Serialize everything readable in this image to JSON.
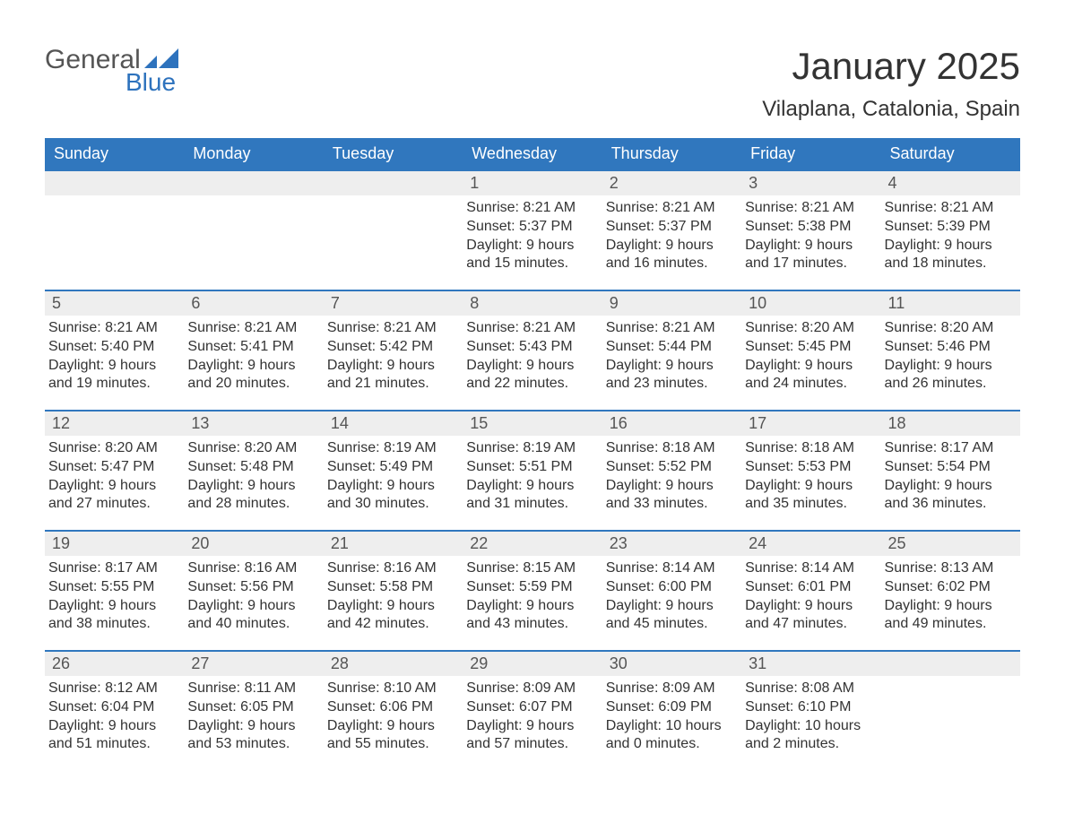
{
  "logo": {
    "text1": "General",
    "text2": "Blue",
    "accent_color": "#2d72bd"
  },
  "title": "January 2025",
  "location": "Vilaplana, Catalonia, Spain",
  "colors": {
    "header_bg": "#3077be",
    "header_fg": "#ffffff",
    "daynum_bg": "#eeeeee",
    "text": "#333333",
    "page_bg": "#ffffff"
  },
  "font": {
    "family": "Arial",
    "title_size_pt": 32,
    "location_size_pt": 18,
    "body_size_pt": 12
  },
  "daynames": [
    "Sunday",
    "Monday",
    "Tuesday",
    "Wednesday",
    "Thursday",
    "Friday",
    "Saturday"
  ],
  "weeks": [
    [
      {
        "day": "",
        "sunrise": "",
        "sunset": "",
        "daylight1": "",
        "daylight2": ""
      },
      {
        "day": "",
        "sunrise": "",
        "sunset": "",
        "daylight1": "",
        "daylight2": ""
      },
      {
        "day": "",
        "sunrise": "",
        "sunset": "",
        "daylight1": "",
        "daylight2": ""
      },
      {
        "day": "1",
        "sunrise": "Sunrise: 8:21 AM",
        "sunset": "Sunset: 5:37 PM",
        "daylight1": "Daylight: 9 hours",
        "daylight2": "and 15 minutes."
      },
      {
        "day": "2",
        "sunrise": "Sunrise: 8:21 AM",
        "sunset": "Sunset: 5:37 PM",
        "daylight1": "Daylight: 9 hours",
        "daylight2": "and 16 minutes."
      },
      {
        "day": "3",
        "sunrise": "Sunrise: 8:21 AM",
        "sunset": "Sunset: 5:38 PM",
        "daylight1": "Daylight: 9 hours",
        "daylight2": "and 17 minutes."
      },
      {
        "day": "4",
        "sunrise": "Sunrise: 8:21 AM",
        "sunset": "Sunset: 5:39 PM",
        "daylight1": "Daylight: 9 hours",
        "daylight2": "and 18 minutes."
      }
    ],
    [
      {
        "day": "5",
        "sunrise": "Sunrise: 8:21 AM",
        "sunset": "Sunset: 5:40 PM",
        "daylight1": "Daylight: 9 hours",
        "daylight2": "and 19 minutes."
      },
      {
        "day": "6",
        "sunrise": "Sunrise: 8:21 AM",
        "sunset": "Sunset: 5:41 PM",
        "daylight1": "Daylight: 9 hours",
        "daylight2": "and 20 minutes."
      },
      {
        "day": "7",
        "sunrise": "Sunrise: 8:21 AM",
        "sunset": "Sunset: 5:42 PM",
        "daylight1": "Daylight: 9 hours",
        "daylight2": "and 21 minutes."
      },
      {
        "day": "8",
        "sunrise": "Sunrise: 8:21 AM",
        "sunset": "Sunset: 5:43 PM",
        "daylight1": "Daylight: 9 hours",
        "daylight2": "and 22 minutes."
      },
      {
        "day": "9",
        "sunrise": "Sunrise: 8:21 AM",
        "sunset": "Sunset: 5:44 PM",
        "daylight1": "Daylight: 9 hours",
        "daylight2": "and 23 minutes."
      },
      {
        "day": "10",
        "sunrise": "Sunrise: 8:20 AM",
        "sunset": "Sunset: 5:45 PM",
        "daylight1": "Daylight: 9 hours",
        "daylight2": "and 24 minutes."
      },
      {
        "day": "11",
        "sunrise": "Sunrise: 8:20 AM",
        "sunset": "Sunset: 5:46 PM",
        "daylight1": "Daylight: 9 hours",
        "daylight2": "and 26 minutes."
      }
    ],
    [
      {
        "day": "12",
        "sunrise": "Sunrise: 8:20 AM",
        "sunset": "Sunset: 5:47 PM",
        "daylight1": "Daylight: 9 hours",
        "daylight2": "and 27 minutes."
      },
      {
        "day": "13",
        "sunrise": "Sunrise: 8:20 AM",
        "sunset": "Sunset: 5:48 PM",
        "daylight1": "Daylight: 9 hours",
        "daylight2": "and 28 minutes."
      },
      {
        "day": "14",
        "sunrise": "Sunrise: 8:19 AM",
        "sunset": "Sunset: 5:49 PM",
        "daylight1": "Daylight: 9 hours",
        "daylight2": "and 30 minutes."
      },
      {
        "day": "15",
        "sunrise": "Sunrise: 8:19 AM",
        "sunset": "Sunset: 5:51 PM",
        "daylight1": "Daylight: 9 hours",
        "daylight2": "and 31 minutes."
      },
      {
        "day": "16",
        "sunrise": "Sunrise: 8:18 AM",
        "sunset": "Sunset: 5:52 PM",
        "daylight1": "Daylight: 9 hours",
        "daylight2": "and 33 minutes."
      },
      {
        "day": "17",
        "sunrise": "Sunrise: 8:18 AM",
        "sunset": "Sunset: 5:53 PM",
        "daylight1": "Daylight: 9 hours",
        "daylight2": "and 35 minutes."
      },
      {
        "day": "18",
        "sunrise": "Sunrise: 8:17 AM",
        "sunset": "Sunset: 5:54 PM",
        "daylight1": "Daylight: 9 hours",
        "daylight2": "and 36 minutes."
      }
    ],
    [
      {
        "day": "19",
        "sunrise": "Sunrise: 8:17 AM",
        "sunset": "Sunset: 5:55 PM",
        "daylight1": "Daylight: 9 hours",
        "daylight2": "and 38 minutes."
      },
      {
        "day": "20",
        "sunrise": "Sunrise: 8:16 AM",
        "sunset": "Sunset: 5:56 PM",
        "daylight1": "Daylight: 9 hours",
        "daylight2": "and 40 minutes."
      },
      {
        "day": "21",
        "sunrise": "Sunrise: 8:16 AM",
        "sunset": "Sunset: 5:58 PM",
        "daylight1": "Daylight: 9 hours",
        "daylight2": "and 42 minutes."
      },
      {
        "day": "22",
        "sunrise": "Sunrise: 8:15 AM",
        "sunset": "Sunset: 5:59 PM",
        "daylight1": "Daylight: 9 hours",
        "daylight2": "and 43 minutes."
      },
      {
        "day": "23",
        "sunrise": "Sunrise: 8:14 AM",
        "sunset": "Sunset: 6:00 PM",
        "daylight1": "Daylight: 9 hours",
        "daylight2": "and 45 minutes."
      },
      {
        "day": "24",
        "sunrise": "Sunrise: 8:14 AM",
        "sunset": "Sunset: 6:01 PM",
        "daylight1": "Daylight: 9 hours",
        "daylight2": "and 47 minutes."
      },
      {
        "day": "25",
        "sunrise": "Sunrise: 8:13 AM",
        "sunset": "Sunset: 6:02 PM",
        "daylight1": "Daylight: 9 hours",
        "daylight2": "and 49 minutes."
      }
    ],
    [
      {
        "day": "26",
        "sunrise": "Sunrise: 8:12 AM",
        "sunset": "Sunset: 6:04 PM",
        "daylight1": "Daylight: 9 hours",
        "daylight2": "and 51 minutes."
      },
      {
        "day": "27",
        "sunrise": "Sunrise: 8:11 AM",
        "sunset": "Sunset: 6:05 PM",
        "daylight1": "Daylight: 9 hours",
        "daylight2": "and 53 minutes."
      },
      {
        "day": "28",
        "sunrise": "Sunrise: 8:10 AM",
        "sunset": "Sunset: 6:06 PM",
        "daylight1": "Daylight: 9 hours",
        "daylight2": "and 55 minutes."
      },
      {
        "day": "29",
        "sunrise": "Sunrise: 8:09 AM",
        "sunset": "Sunset: 6:07 PM",
        "daylight1": "Daylight: 9 hours",
        "daylight2": "and 57 minutes."
      },
      {
        "day": "30",
        "sunrise": "Sunrise: 8:09 AM",
        "sunset": "Sunset: 6:09 PM",
        "daylight1": "Daylight: 10 hours",
        "daylight2": "and 0 minutes."
      },
      {
        "day": "31",
        "sunrise": "Sunrise: 8:08 AM",
        "sunset": "Sunset: 6:10 PM",
        "daylight1": "Daylight: 10 hours",
        "daylight2": "and 2 minutes."
      },
      {
        "day": "",
        "sunrise": "",
        "sunset": "",
        "daylight1": "",
        "daylight2": ""
      }
    ]
  ]
}
